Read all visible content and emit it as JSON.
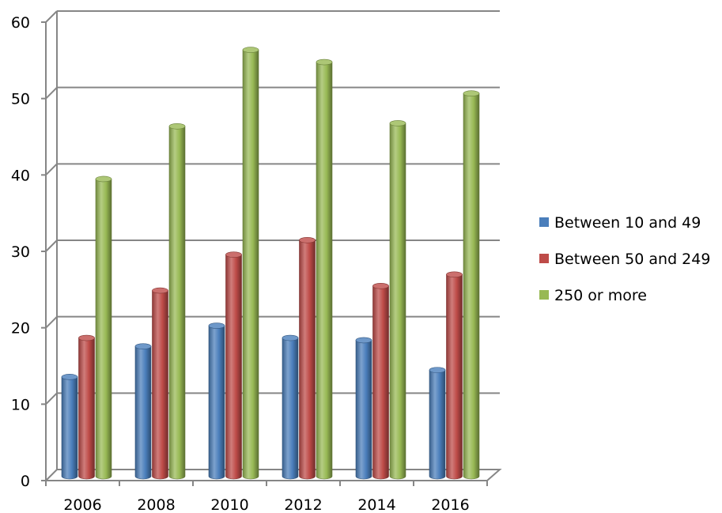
{
  "chart_data": {
    "type": "bar",
    "title": "",
    "xlabel": "",
    "ylabel": "",
    "categories": [
      "2006",
      "2008",
      "2010",
      "2012",
      "2014",
      "2016"
    ],
    "ylim": [
      0,
      60
    ],
    "yticks": [
      "0",
      "10",
      "20",
      "30",
      "40",
      "50",
      "60"
    ],
    "grid": true,
    "style": "3d-cylinder",
    "legend": "right",
    "series": [
      {
        "name": "Between 10 and 49",
        "color": "#4a7ebb",
        "values": [
          13,
          17,
          19.7,
          18.1,
          17.8,
          13.9
        ]
      },
      {
        "name": "Between 50 and 249",
        "color": "#be4b48",
        "values": [
          18.1,
          24.3,
          29,
          30.9,
          24.9,
          26.4
        ]
      },
      {
        "name": "250 or more",
        "color": "#98b954",
        "values": [
          38.9,
          45.8,
          55.8,
          54.2,
          46.2,
          50.1
        ]
      }
    ]
  }
}
